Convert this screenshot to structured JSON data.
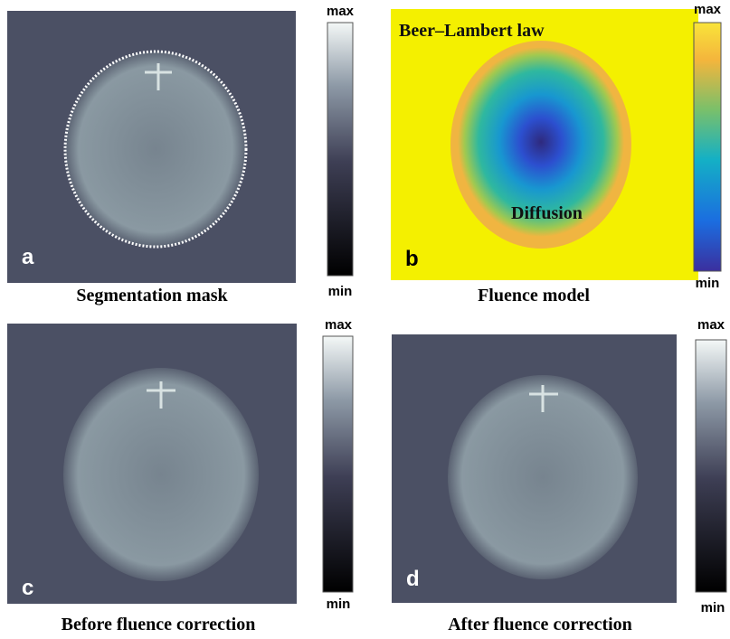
{
  "panels": [
    {
      "label": "a",
      "caption": "Segmentation mask",
      "colorbar": {
        "max": "max",
        "min": "min"
      }
    },
    {
      "label": "b",
      "caption": "Fluence model",
      "colorbar": {
        "max": "max",
        "min": "min"
      },
      "annotations": [
        "Beer–Lambert law",
        "Diffusion"
      ]
    },
    {
      "label": "c",
      "caption": "Before fluence correction",
      "colorbar": {
        "max": "max",
        "min": "min"
      }
    },
    {
      "label": "d",
      "caption": "After fluence correction",
      "colorbar": {
        "max": "max",
        "min": "min"
      }
    }
  ]
}
